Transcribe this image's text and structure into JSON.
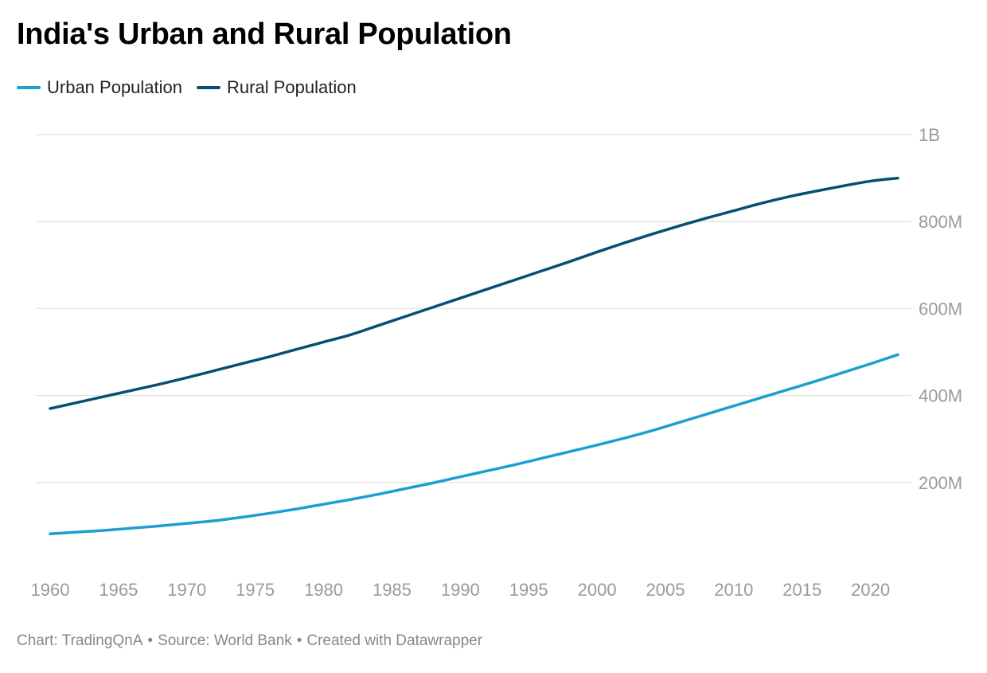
{
  "title": "India's Urban and Rural Population",
  "footer": {
    "chart_by": "Chart: TradingQnA",
    "source": "Source: World Bank",
    "created_with": "Created with Datawrapper",
    "separator": "•"
  },
  "colors": {
    "urban": "#1c9fd0",
    "rural": "#06506f",
    "grid": "#e0e0e0",
    "tick_text": "#9a9a9a"
  },
  "chart_data": {
    "type": "line",
    "title": "India's Urban and Rural Population",
    "xlabel": "",
    "ylabel": "",
    "xlim": [
      1960,
      2022
    ],
    "ylim": [
      0,
      1000000000
    ],
    "grid": true,
    "legend_position": "top-left",
    "y_axis_side": "right",
    "x_ticks": [
      1960,
      1965,
      1970,
      1975,
      1980,
      1985,
      1990,
      1995,
      2000,
      2005,
      2010,
      2015,
      2020
    ],
    "x_tick_labels": [
      "1960",
      "1965",
      "1970",
      "1975",
      "1980",
      "1985",
      "1990",
      "1995",
      "2000",
      "2005",
      "2010",
      "2015",
      "2020"
    ],
    "y_ticks": [
      200000000,
      400000000,
      600000000,
      800000000,
      1000000000
    ],
    "y_tick_labels": [
      "200M",
      "400M",
      "600M",
      "800M",
      "1B"
    ],
    "x": [
      1960,
      1962,
      1964,
      1966,
      1968,
      1970,
      1972,
      1974,
      1976,
      1978,
      1980,
      1982,
      1984,
      1986,
      1988,
      1990,
      1992,
      1994,
      1996,
      1998,
      2000,
      2002,
      2004,
      2006,
      2008,
      2010,
      2012,
      2014,
      2016,
      2018,
      2020,
      2022
    ],
    "series": [
      {
        "name": "Urban Population",
        "color_key": "urban",
        "values": [
          82000000,
          86000000,
          90000000,
          95000000,
          100000000,
          106000000,
          112000000,
          120000000,
          129000000,
          139000000,
          150000000,
          161000000,
          173000000,
          186000000,
          199000000,
          213000000,
          227000000,
          241000000,
          256000000,
          271000000,
          286000000,
          302000000,
          319000000,
          338000000,
          357000000,
          376000000,
          395000000,
          414000000,
          433000000,
          453000000,
          473000000,
          494000000
        ]
      },
      {
        "name": "Rural Population",
        "color_key": "rural",
        "values": [
          370000000,
          384000000,
          398000000,
          412000000,
          426000000,
          441000000,
          457000000,
          473000000,
          489000000,
          506000000,
          523000000,
          540000000,
          561000000,
          582000000,
          603000000,
          624000000,
          645000000,
          666000000,
          687000000,
          708000000,
          730000000,
          751000000,
          771000000,
          790000000,
          808000000,
          825000000,
          842000000,
          857000000,
          870000000,
          882000000,
          893000000,
          900000000
        ]
      }
    ]
  }
}
